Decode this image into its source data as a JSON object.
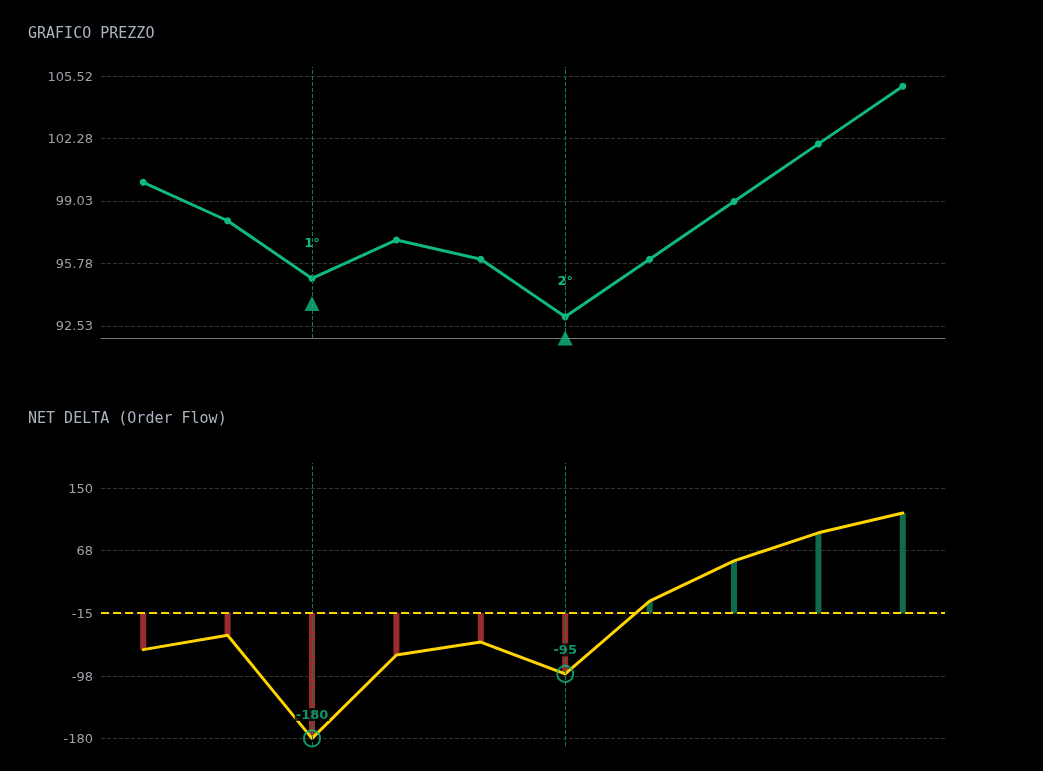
{
  "chart_data": [
    {
      "type": "line",
      "title": "GRAFICO PREZZO",
      "categories": [
        null,
        null,
        null,
        null,
        null,
        null,
        null,
        null,
        null,
        null
      ],
      "ylim": [
        91.9,
        106
      ],
      "yticks": [
        92.53,
        95.78,
        99.03,
        102.28,
        105.52
      ],
      "grid": "y",
      "marker": "circle",
      "line_style": "solid",
      "annotations": [
        "1°",
        "2°"
      ],
      "series": [
        {
          "color": "#10b981",
          "values": [
            100,
            98,
            95,
            97,
            96,
            93,
            96,
            99,
            102,
            105
          ]
        },
        {
          "type": "scatter",
          "marker": "triangle",
          "color": "#10b981",
          "values": [
            null,
            null,
            93.7,
            null,
            null,
            91.9,
            null,
            null,
            null,
            null
          ]
        }
      ]
    },
    {
      "type": "line",
      "title": "NET DELTA (Order Flow)",
      "categories": [
        null,
        null,
        null,
        null,
        null,
        null,
        null,
        null,
        null,
        null
      ],
      "ylim": [
        -190,
        183
      ],
      "yticks": [
        -180,
        -98,
        -15,
        68,
        150
      ],
      "grid": "y",
      "line_style": "solid",
      "ref_lines": [
        {
          "axis": "y",
          "value": -15,
          "color": "#ffd400",
          "line_style": "dashed"
        }
      ],
      "series": [
        {
          "type": "bar",
          "base": [
            -15,
            -15,
            -15,
            -15,
            -15,
            -15,
            -15,
            -15,
            -15,
            -15
          ],
          "values": [
            -48,
            -29,
            -165,
            -55,
            -38,
            -80,
            16,
            69,
            106,
            132
          ],
          "colors": [
            "#9b2c2c",
            "#9b2c2c",
            "#9b2c2c",
            "#9b2c2c",
            "#9b2c2c",
            "#9b2c2c",
            "#0f6b4a",
            "#0f6b4a",
            "#0f6b4a",
            "#0f6b4a"
          ]
        },
        {
          "marker": "none",
          "color": "#ffd400",
          "values": [
            -63,
            -44,
            -180,
            -70,
            -53,
            -95,
            1,
            54,
            91,
            117
          ]
        },
        {
          "type": "scatter",
          "marker": "circle",
          "color": "#10b981",
          "values": [
            null,
            null,
            -180,
            null,
            null,
            -95,
            null,
            null,
            null,
            null
          ],
          "value_labels": [
            null,
            null,
            "-180",
            null,
            null,
            "-95",
            null,
            null,
            null,
            null
          ]
        }
      ]
    }
  ]
}
